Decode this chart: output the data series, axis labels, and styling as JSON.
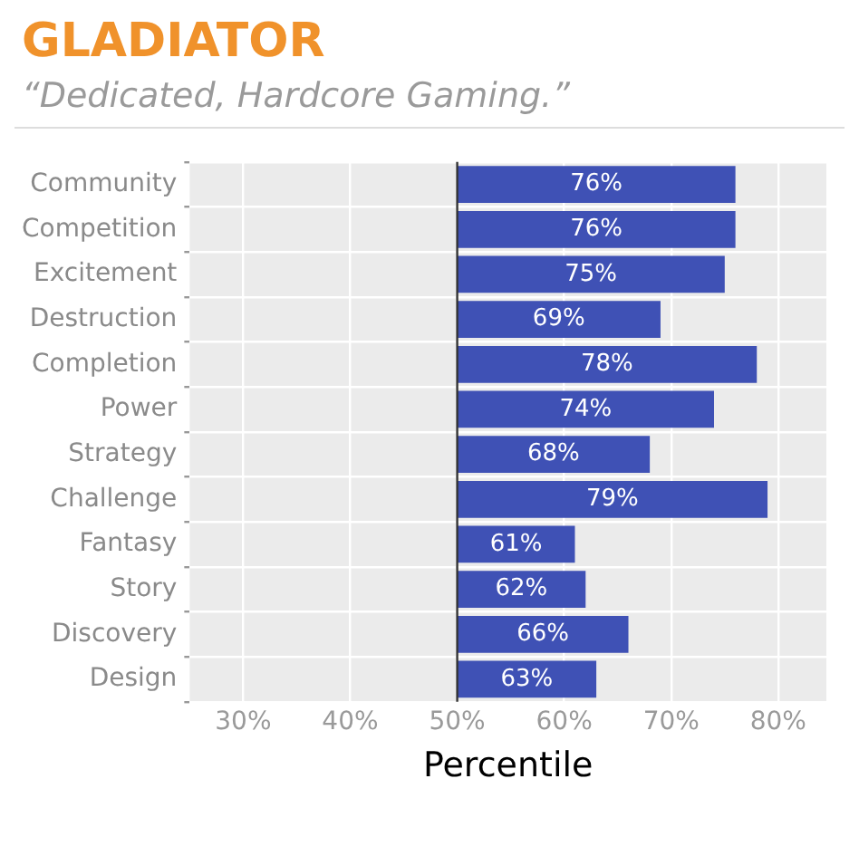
{
  "chart_data": {
    "type": "bar",
    "orientation": "horizontal",
    "title": "GLADIATOR",
    "subtitle": "“Dedicated, Hardcore Gaming.”",
    "xlabel": "Percentile",
    "categories": [
      "Community",
      "Competition",
      "Excitement",
      "Destruction",
      "Completion",
      "Power",
      "Strategy",
      "Challenge",
      "Fantasy",
      "Story",
      "Discovery",
      "Design"
    ],
    "base": [
      50,
      50,
      50,
      50,
      50,
      50,
      50,
      50,
      50,
      50,
      50,
      50
    ],
    "values": [
      26,
      26,
      25,
      19,
      28,
      24,
      18,
      29,
      11,
      12,
      16,
      13
    ],
    "value_labels": [
      "76%",
      "76%",
      "75%",
      "69%",
      "78%",
      "74%",
      "68%",
      "79%",
      "61%",
      "62%",
      "66%",
      "63%"
    ],
    "color": "#3f51b5",
    "xlim": [
      25,
      84.5
    ],
    "xticks": [
      {
        "value": 30,
        "label": "30%"
      },
      {
        "value": 40,
        "label": "40%"
      },
      {
        "value": 50,
        "label": "50%"
      },
      {
        "value": 60,
        "label": "60%"
      },
      {
        "value": 70,
        "label": "70%"
      },
      {
        "value": 80,
        "label": "80%"
      }
    ],
    "ref_lines": [
      {
        "axis": "x",
        "value": 50,
        "color": "#333333"
      }
    ],
    "grid": true,
    "legend": false
  }
}
